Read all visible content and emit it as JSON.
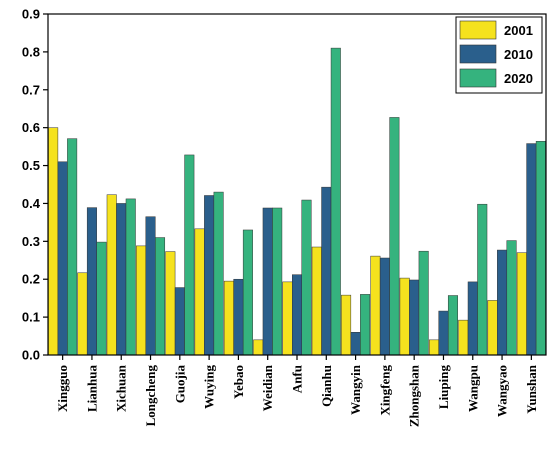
{
  "chart_data": {
    "type": "bar",
    "categories": [
      "Xingguo",
      "Lianhua",
      "Xichuan",
      "Longcheng",
      "Guojia",
      "Wuying",
      "Yebao",
      "Weidian",
      "Anfu",
      "Qianhu",
      "Wangyin",
      "Xingfeng",
      "Zhongshan",
      "Liuping",
      "Wangpu",
      "Wangyao",
      "Yunshan"
    ],
    "series": [
      {
        "name": "2001",
        "color": "#f5e21e",
        "values": [
          0.6,
          0.217,
          0.423,
          0.288,
          0.273,
          0.333,
          0.195,
          0.04,
          0.193,
          0.285,
          0.158,
          0.261,
          0.203,
          0.04,
          0.092,
          0.144,
          0.27
        ]
      },
      {
        "name": "2010",
        "color": "#2a5f8c",
        "values": [
          0.51,
          0.389,
          0.4,
          0.365,
          0.178,
          0.421,
          0.2,
          0.388,
          0.212,
          0.443,
          0.06,
          0.256,
          0.198,
          0.116,
          0.193,
          0.277,
          0.558
        ]
      },
      {
        "name": "2020",
        "color": "#35b37e",
        "values": [
          0.571,
          0.298,
          0.412,
          0.31,
          0.528,
          0.43,
          0.33,
          0.388,
          0.409,
          0.81,
          0.16,
          0.627,
          0.274,
          0.157,
          0.398,
          0.302,
          0.564
        ]
      }
    ],
    "title": "",
    "xlabel": "",
    "ylabel": "",
    "ylim": [
      0,
      0.9
    ],
    "yticks": [
      "0.0",
      "0.1",
      "0.2",
      "0.3",
      "0.4",
      "0.5",
      "0.6",
      "0.7",
      "0.8",
      "0.9"
    ],
    "grid": false,
    "legend_position": "top-right"
  }
}
